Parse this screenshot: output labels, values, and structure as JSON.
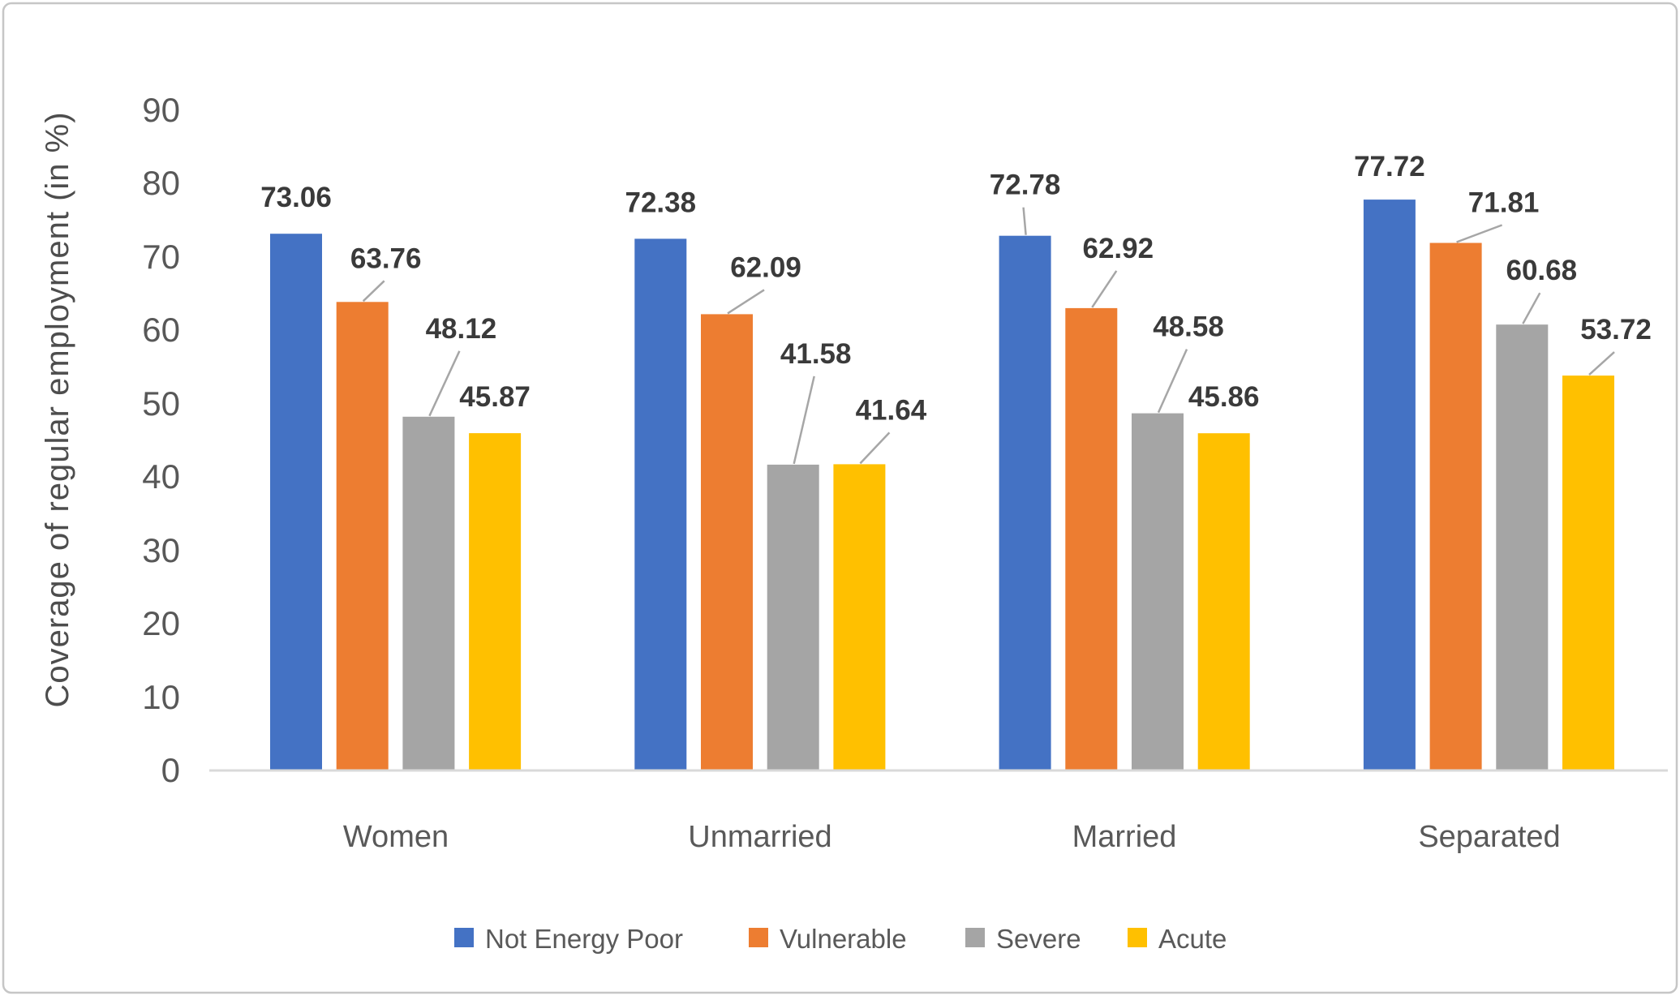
{
  "chart_data": {
    "type": "bar",
    "title": "",
    "xlabel": "",
    "ylabel": "Coverage of regular employment (in %)",
    "ylim": [
      0,
      90
    ],
    "y_ticks": [
      0,
      10,
      20,
      30,
      40,
      50,
      60,
      70,
      80,
      90
    ],
    "grid": false,
    "legend_position": "bottom",
    "categories": [
      "Women",
      "Unmarried",
      "Married",
      "Separated"
    ],
    "series": [
      {
        "name": "Not Energy Poor",
        "color": "#4472C4",
        "values": [
          73.06,
          72.38,
          72.78,
          77.72
        ]
      },
      {
        "name": "Vulnerable",
        "color": "#ED7D31",
        "values": [
          63.76,
          62.09,
          62.92,
          71.81
        ]
      },
      {
        "name": "Severe",
        "color": "#A5A5A5",
        "values": [
          48.12,
          41.58,
          48.58,
          60.68
        ]
      },
      {
        "name": "Acute",
        "color": "#FFC000",
        "values": [
          45.87,
          41.64,
          45.86,
          53.72
        ]
      }
    ],
    "data_labels": {
      "show": true,
      "decimals": 2
    },
    "leader_line_color": "#a6a6a6",
    "axis_line_color": "#d9d9d9"
  }
}
